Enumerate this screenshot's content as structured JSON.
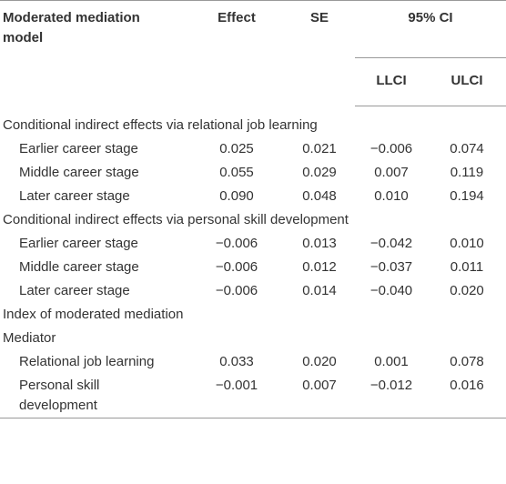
{
  "columns": {
    "model": "Moderated mediation model",
    "effect": "Effect",
    "se": "SE",
    "ci": "95% CI",
    "llci": "LLCI",
    "ulci": "ULCI"
  },
  "rows": [
    {
      "section": "Conditional indirect effects via relational job learning"
    },
    {
      "label": "Earlier career stage",
      "values": [
        "0.025",
        "0.021",
        "−0.006",
        "0.074"
      ]
    },
    {
      "label": "Middle career stage",
      "values": [
        "0.055",
        "0.029",
        "0.007",
        "0.119"
      ]
    },
    {
      "label": "Later career stage",
      "values": [
        "0.090",
        "0.048",
        "0.010",
        "0.194"
      ]
    },
    {
      "section": "Conditional indirect effects via personal skill development"
    },
    {
      "label": "Earlier career stage",
      "values": [
        "−0.006",
        "0.013",
        "−0.042",
        "0.010"
      ]
    },
    {
      "label": "Middle career stage",
      "values": [
        "−0.006",
        "0.012",
        "−0.037",
        "0.011"
      ]
    },
    {
      "label": "Later career stage",
      "values": [
        "−0.006",
        "0.014",
        "−0.040",
        "0.020"
      ]
    },
    {
      "section": "Index of moderated mediation"
    },
    {
      "section": "Mediator"
    },
    {
      "label": "Relational job learning",
      "values": [
        "0.033",
        "0.020",
        "0.001",
        "0.078"
      ]
    },
    {
      "label": "Personal skill development",
      "values": [
        "−0.001",
        "0.007",
        "−0.012",
        "0.016"
      ]
    }
  ]
}
